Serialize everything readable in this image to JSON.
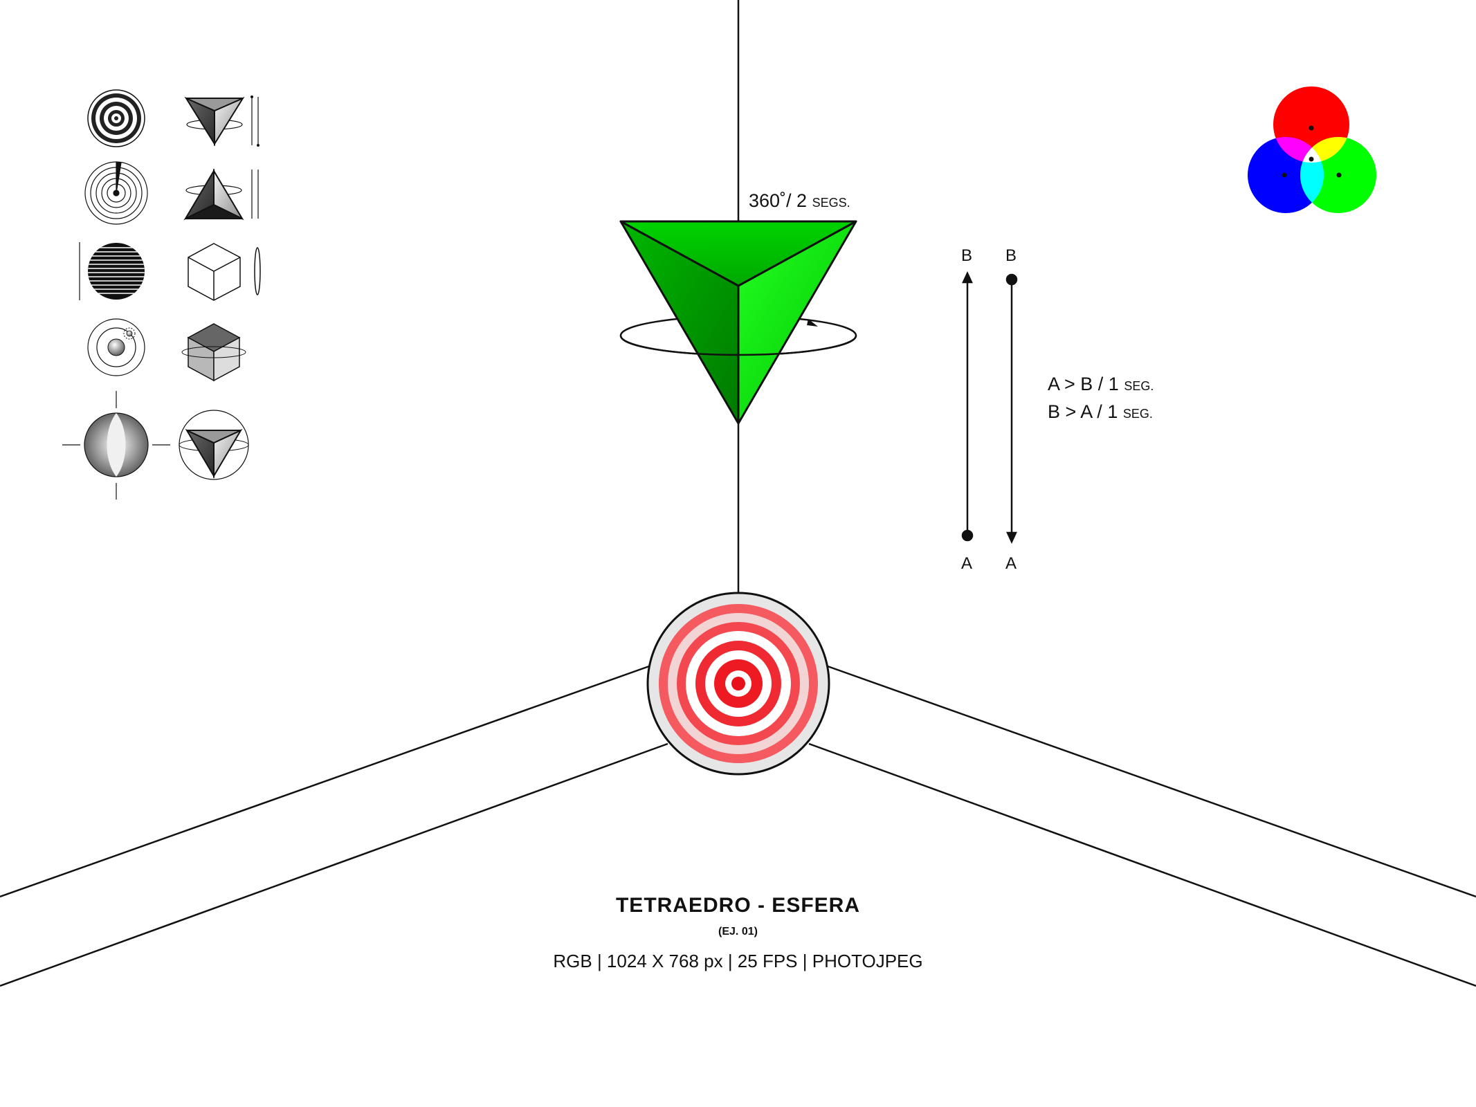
{
  "title": "TETRAEDRO - ESFERA",
  "subtitle": "(EJ. 01)",
  "specs": "RGB | 1024 X 768 px | 25 FPS | PHOTOJPEG",
  "rotation": {
    "value": "360˚/ 2",
    "unit": "SEGS."
  },
  "motion": {
    "label_b": "B",
    "label_a": "A",
    "line1": "A > B / 1",
    "line2": "B > A / 1",
    "unit": "SEG."
  },
  "colors": {
    "tetra_green": "#00dd00",
    "target_red": "#f0202a",
    "target_ring_light": "#f5d0d0",
    "rgb_red": "#ff0000",
    "rgb_green": "#00ff00",
    "rgb_blue": "#0000ff"
  },
  "icons": [
    "concentric-rings-icon",
    "tetrahedron-down-icon",
    "radar-circle-icon",
    "tetrahedron-up-icon",
    "striped-sphere-icon",
    "wireframe-cube-icon",
    "orbit-sphere-icon",
    "shaded-cube-icon",
    "pinched-sphere-icon",
    "tetrahedron-in-sphere-icon",
    "rgb-venn-icon",
    "rotation-arrow-icon",
    "up-arrow-icon",
    "down-arrow-icon"
  ]
}
